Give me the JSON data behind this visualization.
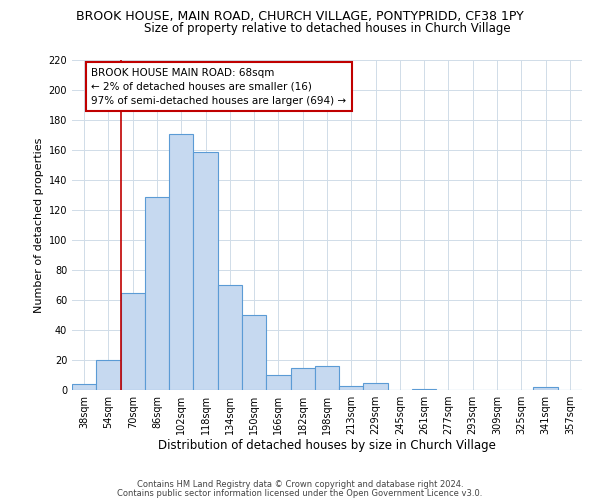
{
  "title": "BROOK HOUSE, MAIN ROAD, CHURCH VILLAGE, PONTYPRIDD, CF38 1PY",
  "subtitle": "Size of property relative to detached houses in Church Village",
  "xlabel": "Distribution of detached houses by size in Church Village",
  "ylabel": "Number of detached properties",
  "bar_labels": [
    "38sqm",
    "54sqm",
    "70sqm",
    "86sqm",
    "102sqm",
    "118sqm",
    "134sqm",
    "150sqm",
    "166sqm",
    "182sqm",
    "198sqm",
    "213sqm",
    "229sqm",
    "245sqm",
    "261sqm",
    "277sqm",
    "293sqm",
    "309sqm",
    "325sqm",
    "341sqm",
    "357sqm"
  ],
  "bar_values": [
    4,
    20,
    65,
    129,
    171,
    159,
    70,
    50,
    10,
    15,
    16,
    3,
    5,
    0,
    1,
    0,
    0,
    0,
    0,
    2,
    0
  ],
  "bar_color": "#c6d9f0",
  "bar_edge_color": "#5b9bd5",
  "vline_color": "#c00000",
  "ylim": [
    0,
    220
  ],
  "yticks": [
    0,
    20,
    40,
    60,
    80,
    100,
    120,
    140,
    160,
    180,
    200,
    220
  ],
  "annotation_title": "BROOK HOUSE MAIN ROAD: 68sqm",
  "annotation_line1": "← 2% of detached houses are smaller (16)",
  "annotation_line2": "97% of semi-detached houses are larger (694) →",
  "annotation_box_color": "#ffffff",
  "annotation_box_edge": "#c00000",
  "footer1": "Contains HM Land Registry data © Crown copyright and database right 2024.",
  "footer2": "Contains public sector information licensed under the Open Government Licence v3.0.",
  "bg_color": "#ffffff",
  "grid_color": "#d0dce8",
  "title_fontsize": 9,
  "subtitle_fontsize": 8.5,
  "xlabel_fontsize": 8.5,
  "ylabel_fontsize": 8,
  "tick_fontsize": 7,
  "annotation_fontsize": 7.5,
  "footer_fontsize": 6
}
